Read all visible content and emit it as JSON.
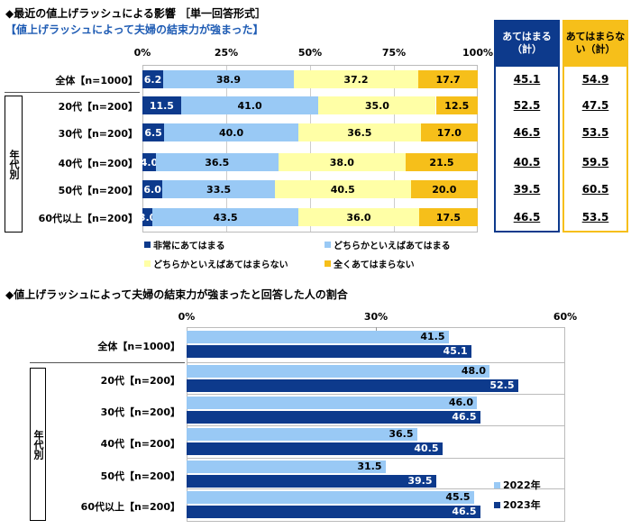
{
  "title": "◆最近の値上げラッシュによる影響 ［単一回答形式］",
  "subtitle": "【値上げラッシュによって夫婦の結束力が強まった】",
  "group_label": "年代別",
  "summary_headers": [
    "あてはまる（計）",
    "あてはまらない（計）"
  ],
  "colors": {
    "s1": "#0d3a8c",
    "s2": "#99c9f5",
    "s3": "#ffffa6",
    "s4": "#f6bf1a",
    "y2022": "#99c9f5",
    "y2023": "#0d3a8c"
  },
  "chart_data": [
    {
      "type": "bar",
      "orientation": "horizontal",
      "stacked": true,
      "xlim": [
        0,
        100
      ],
      "tick_labels": [
        "0%",
        "25%",
        "50%",
        "75%",
        "100%"
      ],
      "categories": [
        "全体【n=1000】",
        "20代【n=200】",
        "30代【n=200】",
        "40代【n=200】",
        "50代【n=200】",
        "60代以上【n=200】"
      ],
      "series": [
        {
          "name": "非常にあてはまる",
          "values": [
            6.2,
            11.5,
            6.5,
            4.0,
            6.0,
            3.0
          ]
        },
        {
          "name": "どちらかといえばあてはまる",
          "values": [
            38.9,
            41.0,
            40.0,
            36.5,
            33.5,
            43.5
          ]
        },
        {
          "name": "どちらかといえばあてはまらない",
          "values": [
            37.2,
            35.0,
            36.5,
            38.0,
            40.5,
            36.0
          ]
        },
        {
          "name": "全くあてはまらない",
          "values": [
            17.7,
            12.5,
            17.0,
            21.5,
            20.0,
            17.5
          ]
        }
      ],
      "summary": {
        "あてはまる（計）": [
          "45.1",
          "52.5",
          "46.5",
          "40.5",
          "39.5",
          "46.5"
        ],
        "あてはまらない（計）": [
          "54.9",
          "47.5",
          "53.5",
          "59.5",
          "60.5",
          "53.5"
        ]
      },
      "legend": "bottom"
    },
    {
      "type": "bar",
      "orientation": "horizontal",
      "title": "◆値上げラッシュによって夫婦の結束力が強まったと回答した人の割合",
      "xlim": [
        0,
        60
      ],
      "tick_labels": [
        "0%",
        "30%",
        "60%"
      ],
      "categories": [
        "全体【n=1000】",
        "20代【n=200】",
        "30代【n=200】",
        "40代【n=200】",
        "50代【n=200】",
        "60代以上【n=200】"
      ],
      "series": [
        {
          "name": "2022年",
          "values": [
            41.5,
            48.0,
            46.0,
            36.5,
            31.5,
            45.5
          ]
        },
        {
          "name": "2023年",
          "values": [
            45.1,
            52.5,
            46.5,
            40.5,
            39.5,
            46.5
          ]
        }
      ],
      "legend": "bottom-right"
    }
  ]
}
